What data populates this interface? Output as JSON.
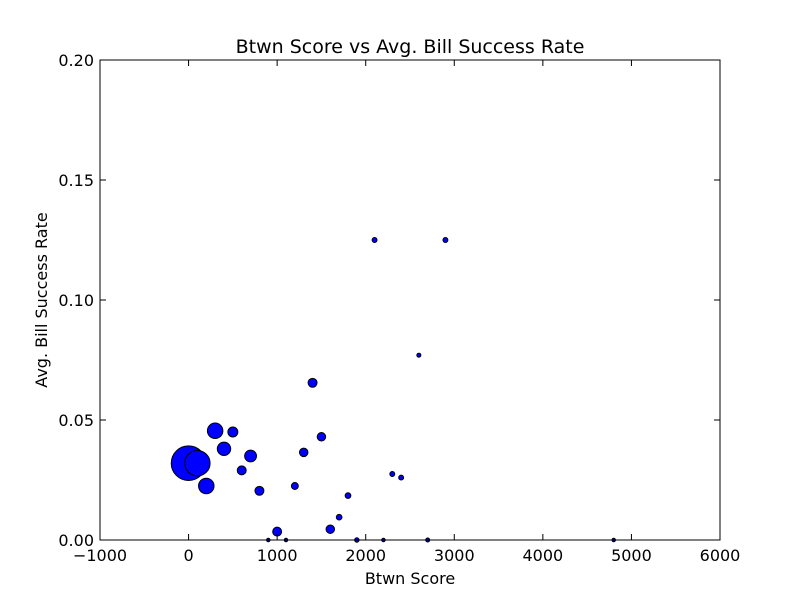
{
  "chart_data": {
    "type": "scatter",
    "title": "Btwn Score vs Avg. Bill Success Rate",
    "xlabel": "Btwn Score",
    "ylabel": "Avg. Bill Success Rate",
    "xlim": [
      -1000,
      6000
    ],
    "ylim": [
      0.0,
      0.2
    ],
    "xticks": [
      -1000,
      0,
      1000,
      2000,
      3000,
      4000,
      5000,
      6000
    ],
    "xtick_labels": [
      "−1000",
      "0",
      "1000",
      "2000",
      "3000",
      "4000",
      "5000",
      "6000"
    ],
    "yticks": [
      0.0,
      0.05,
      0.1,
      0.15,
      0.2
    ],
    "ytick_labels": [
      "0.00",
      "0.05",
      "0.10",
      "0.15",
      "0.20"
    ],
    "grid": false,
    "marker_color": "#0000ff",
    "marker_edge_color": "#000000",
    "points": [
      {
        "x": 0,
        "y": 0.032,
        "size": 300
      },
      {
        "x": 100,
        "y": 0.032,
        "size": 160
      },
      {
        "x": 200,
        "y": 0.0225,
        "size": 60
      },
      {
        "x": 300,
        "y": 0.0455,
        "size": 60
      },
      {
        "x": 400,
        "y": 0.038,
        "size": 45
      },
      {
        "x": 500,
        "y": 0.045,
        "size": 25
      },
      {
        "x": 600,
        "y": 0.029,
        "size": 20
      },
      {
        "x": 700,
        "y": 0.035,
        "size": 35
      },
      {
        "x": 800,
        "y": 0.0205,
        "size": 20
      },
      {
        "x": 900,
        "y": 0.0,
        "size": 3
      },
      {
        "x": 1000,
        "y": 0.0035,
        "size": 20
      },
      {
        "x": 1100,
        "y": 0.0,
        "size": 3
      },
      {
        "x": 1200,
        "y": 0.0225,
        "size": 12
      },
      {
        "x": 1300,
        "y": 0.0365,
        "size": 18
      },
      {
        "x": 1400,
        "y": 0.0655,
        "size": 20
      },
      {
        "x": 1500,
        "y": 0.043,
        "size": 18
      },
      {
        "x": 1600,
        "y": 0.0045,
        "size": 18
      },
      {
        "x": 1700,
        "y": 0.0095,
        "size": 8
      },
      {
        "x": 1800,
        "y": 0.0185,
        "size": 8
      },
      {
        "x": 1900,
        "y": 0.0,
        "size": 5
      },
      {
        "x": 2100,
        "y": 0.125,
        "size": 6
      },
      {
        "x": 2200,
        "y": 0.0,
        "size": 3
      },
      {
        "x": 2300,
        "y": 0.0275,
        "size": 6
      },
      {
        "x": 2400,
        "y": 0.026,
        "size": 6
      },
      {
        "x": 2600,
        "y": 0.077,
        "size": 4
      },
      {
        "x": 2700,
        "y": 0.0,
        "size": 4
      },
      {
        "x": 2900,
        "y": 0.125,
        "size": 6
      },
      {
        "x": 4800,
        "y": 0.0,
        "size": 3
      }
    ]
  }
}
